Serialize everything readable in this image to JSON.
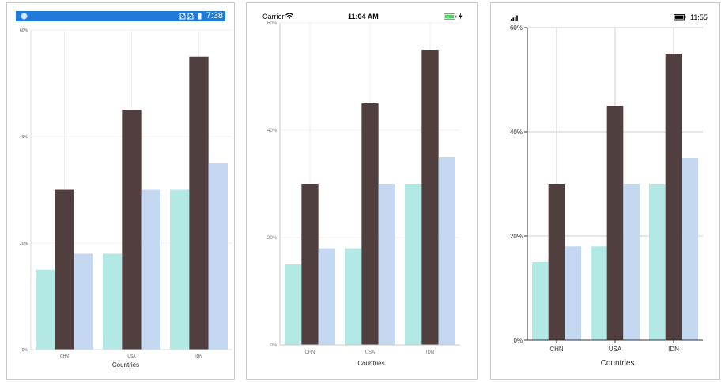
{
  "colors": {
    "series1": "#b3e9e5",
    "series2": "#513f3f",
    "series3": "#c4d8f1",
    "android_status": "#1f7ad8",
    "ios_battery": "#4cd964"
  },
  "panels": [
    {
      "platform": "android",
      "status": {
        "time": "7:38",
        "icons": [
          "circle-icon",
          "no-sim-icon",
          "no-sim-icon",
          "battery-icon"
        ]
      }
    },
    {
      "platform": "ios",
      "status": {
        "carrier": "Carrier",
        "time": "11:04 AM",
        "icons": [
          "wifi-icon",
          "battery-icon",
          "charging-icon"
        ]
      }
    },
    {
      "platform": "uwp",
      "status": {
        "time": "11:55",
        "icons": [
          "signal-icon",
          "battery-icon"
        ]
      }
    }
  ],
  "chart_data": {
    "type": "bar",
    "categories": [
      "CHN",
      "USA",
      "IDN"
    ],
    "series": [
      {
        "values": [
          15,
          18,
          30
        ]
      },
      {
        "values": [
          30,
          45,
          55
        ]
      },
      {
        "values": [
          18,
          30,
          35
        ]
      }
    ],
    "xlabel": "Countries",
    "ylabel": "",
    "ylim": [
      0,
      60
    ],
    "yticks": [
      "0%",
      "20%",
      "40%",
      "60%"
    ],
    "grid": true
  }
}
